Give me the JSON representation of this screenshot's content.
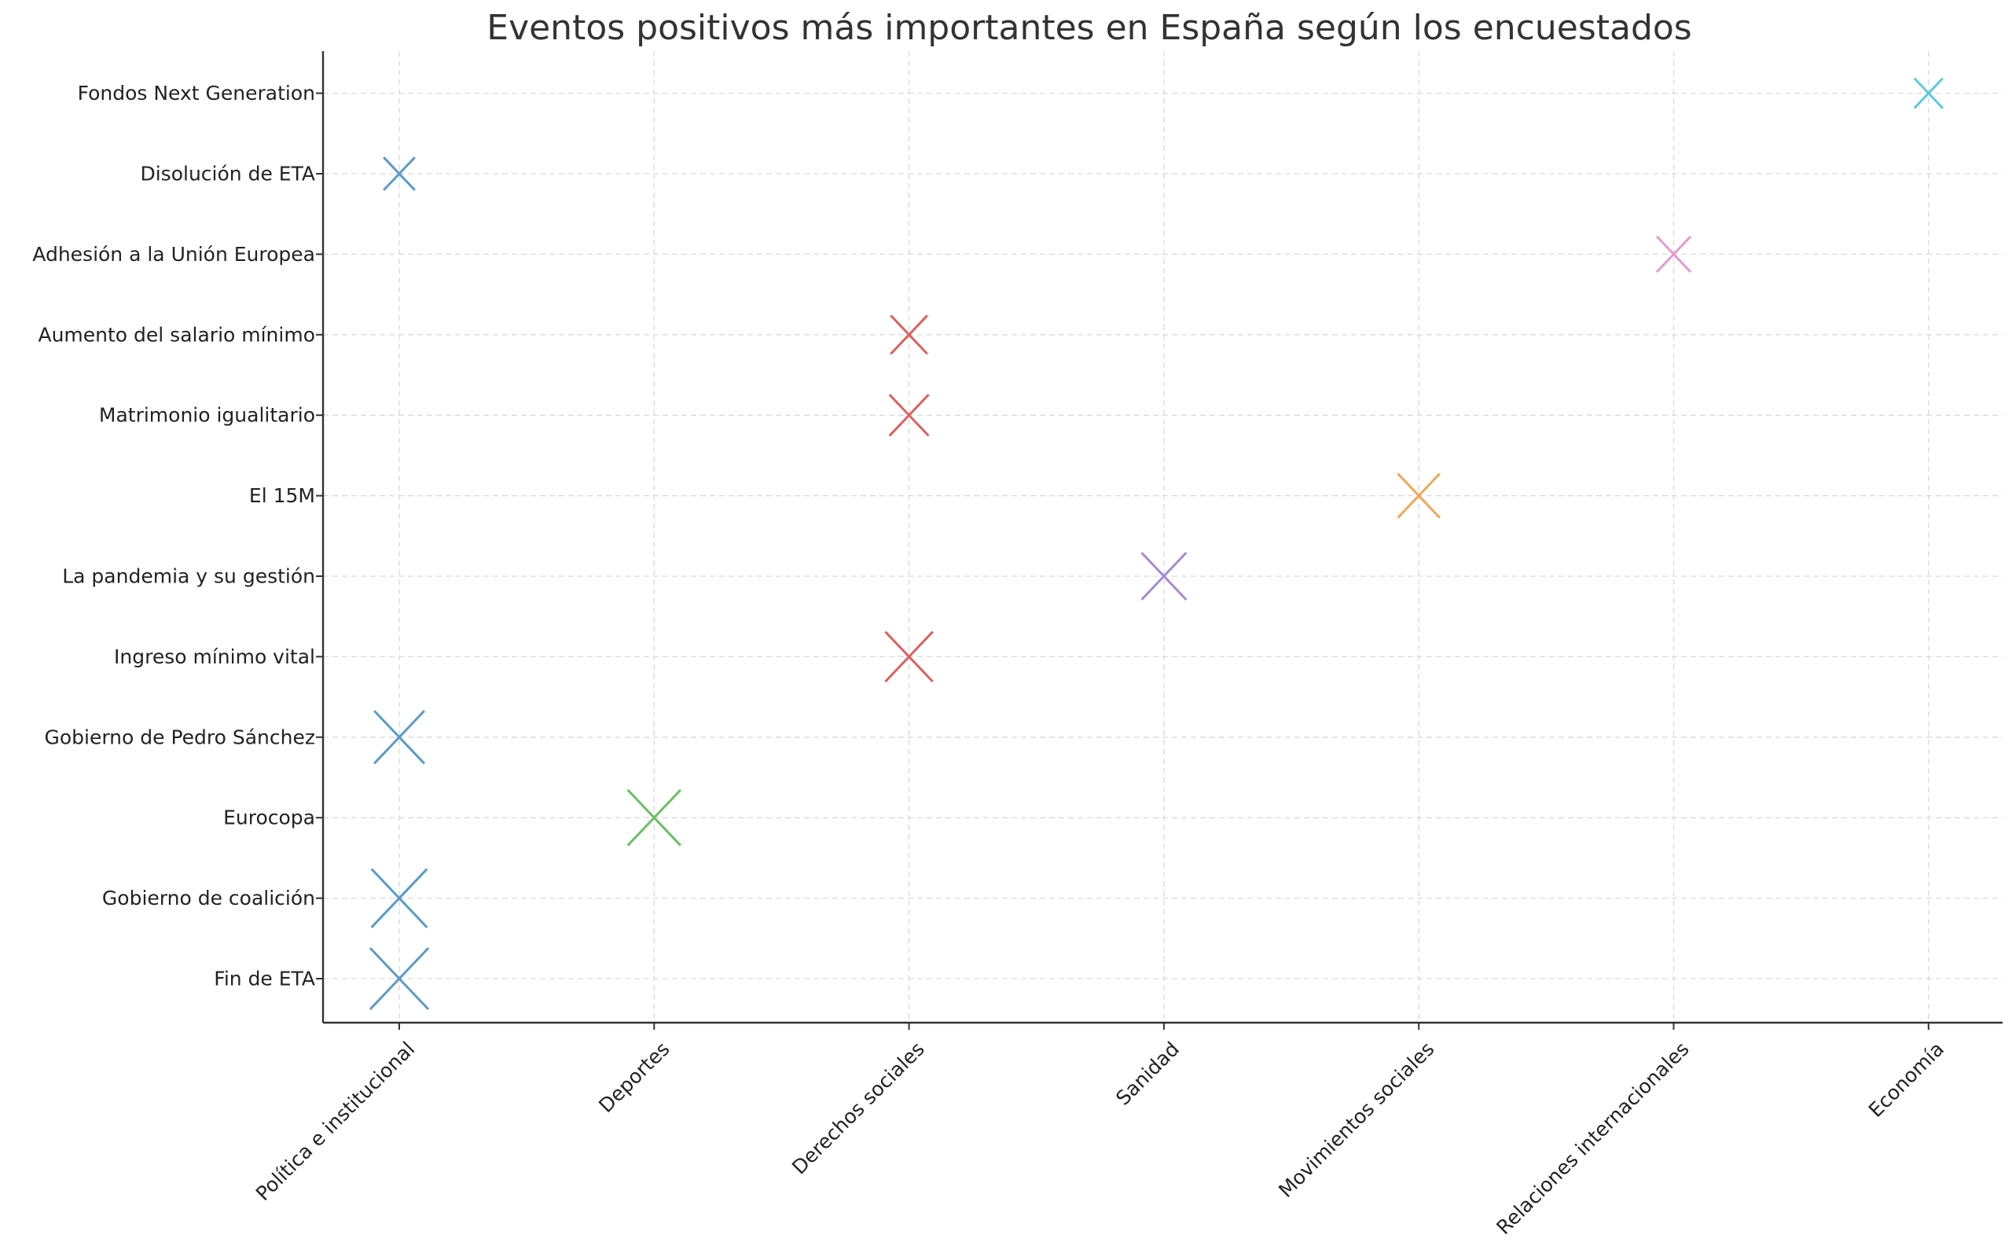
{
  "chart_data": {
    "type": "scatter",
    "title": "Eventos positivos más importantes en España según los encuestados",
    "xlabel": "",
    "ylabel": "",
    "grid": true,
    "legend": "none",
    "marker": "x",
    "categories_x": [
      "Política e institucional",
      "Deportes",
      "Derechos sociales",
      "Sanidad",
      "Movimientos sociales",
      "Relaciones internacionales",
      "Economía"
    ],
    "categories_y": [
      "Fin de ETA",
      "Gobierno de coalición",
      "Eurocopa",
      "Gobierno de Pedro Sánchez",
      "Ingreso mínimo vital",
      "La pandemia y su gestión",
      "El 15M",
      "Matrimonio igualitario",
      "Aumento del salario mínimo",
      "Adhesión a la Unión Europea",
      "Disolución de ETA",
      "Fondos Next Generation"
    ],
    "category_colors": {
      "Política e institucional": "#5b9bc7",
      "Deportes": "#6cbf65",
      "Derechos sociales": "#d9625f",
      "Sanidad": "#a88ccf",
      "Movimientos sociales": "#eda858",
      "Relaciones internacionales": "#e49bd3",
      "Economía": "#5ec9dc"
    },
    "points": [
      {
        "x": "Política e institucional",
        "y": "Fin de ETA",
        "rank": 1
      },
      {
        "x": "Política e institucional",
        "y": "Gobierno de coalición",
        "rank": 2
      },
      {
        "x": "Deportes",
        "y": "Eurocopa",
        "rank": 3
      },
      {
        "x": "Política e institucional",
        "y": "Gobierno de Pedro Sánchez",
        "rank": 4
      },
      {
        "x": "Derechos sociales",
        "y": "Ingreso mínimo vital",
        "rank": 5
      },
      {
        "x": "Sanidad",
        "y": "La pandemia y su gestión",
        "rank": 6
      },
      {
        "x": "Movimientos sociales",
        "y": "El 15M",
        "rank": 7
      },
      {
        "x": "Derechos sociales",
        "y": "Matrimonio igualitario",
        "rank": 8
      },
      {
        "x": "Derechos sociales",
        "y": "Aumento del salario mínimo",
        "rank": 9
      },
      {
        "x": "Relaciones internacionales",
        "y": "Adhesión a la Unión Europea",
        "rank": 10
      },
      {
        "x": "Política e institucional",
        "y": "Disolución de ETA",
        "rank": 11
      },
      {
        "x": "Economía",
        "y": "Fondos Next Generation",
        "rank": 12
      }
    ]
  }
}
